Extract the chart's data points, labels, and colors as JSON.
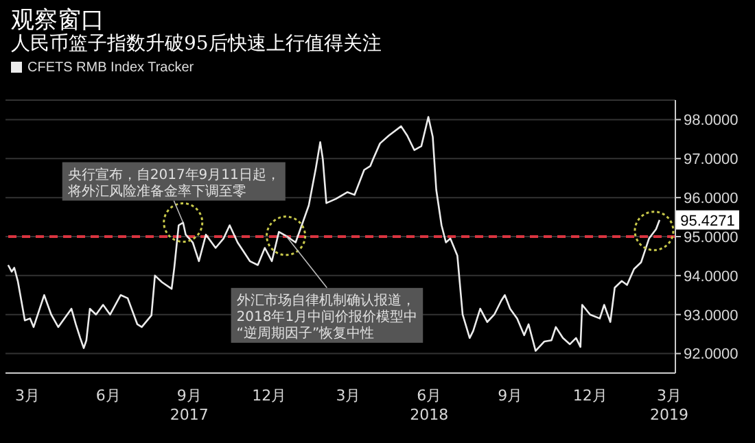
{
  "chart_data": {
    "type": "line",
    "title": "观察窗口",
    "subtitle": "人民币篮子指数升破95后快速上行值得关注",
    "legend": "top left",
    "grid": "y",
    "marker": "none",
    "line_style": "solid",
    "xlim": [
      "2017-02-18",
      "2019-03-22"
    ],
    "xticks": [
      {
        "value": "2017-03-15",
        "label": "3月"
      },
      {
        "value": "2017-06-15",
        "label": "6月"
      },
      {
        "value": "2017-09-15",
        "label": "9月\n2017"
      },
      {
        "value": "2017-12-15",
        "label": "12月"
      },
      {
        "value": "2018-03-15",
        "label": "3月"
      },
      {
        "value": "2018-06-15",
        "label": "6月\n2018"
      },
      {
        "value": "2018-09-15",
        "label": "9月"
      },
      {
        "value": "2018-12-15",
        "label": "12月"
      },
      {
        "value": "2019-03-15",
        "label": "3月\n2019"
      }
    ],
    "ylim": [
      91.5,
      98.5
    ],
    "yticks": [
      {
        "value": 92,
        "label": "92.0000"
      },
      {
        "value": 93,
        "label": "93.0000"
      },
      {
        "value": 94,
        "label": "94.0000"
      },
      {
        "value": 95,
        "label": "95.0000"
      },
      {
        "value": 96,
        "label": "96.0000"
      },
      {
        "value": 97,
        "label": "97.0000"
      },
      {
        "value": 98,
        "label": "98.0000"
      }
    ],
    "ref_lines": [
      {
        "axis": "y",
        "value": 95,
        "color": "#d9343f",
        "line_style": "dashed"
      }
    ],
    "annotations": [
      {
        "text": "央行宣布，自2017年9月11日起，将外汇风险准备金率下调至零",
        "x": "2017-09-08",
        "y": 95.36
      },
      {
        "text": "外汇市场自律机制确认报道，2018年1月中间价报价模型中“逆周期因子”恢复中性",
        "x": "2018-01-03",
        "y": 95.02
      }
    ],
    "x": [
      "2017-02-21",
      "2017-02-25",
      "2017-02-28",
      "2017-03-04",
      "2017-03-08",
      "2017-03-12",
      "2017-03-18",
      "2017-03-22",
      "2017-04-03",
      "2017-04-11",
      "2017-04-19",
      "2017-04-26",
      "2017-05-04",
      "2017-05-09",
      "2017-05-14",
      "2017-05-18",
      "2017-05-21",
      "2017-05-25",
      "2017-06-01",
      "2017-06-09",
      "2017-06-17",
      "2017-06-29",
      "2017-07-07",
      "2017-07-18",
      "2017-07-23",
      "2017-08-03",
      "2017-08-07",
      "2017-08-15",
      "2017-08-26",
      "2017-08-29",
      "2017-09-03",
      "2017-09-08",
      "2017-09-11",
      "2017-09-19",
      "2017-09-26",
      "2017-10-04",
      "2017-10-15",
      "2017-10-24",
      "2017-10-31",
      "2017-11-09",
      "2017-11-23",
      "2017-12-02",
      "2017-12-10",
      "2017-12-18",
      "2017-12-26",
      "2018-01-03",
      "2018-01-14",
      "2018-01-21",
      "2018-01-29",
      "2018-02-06",
      "2018-02-11",
      "2018-02-14",
      "2018-02-18",
      "2018-03-01",
      "2018-03-14",
      "2018-03-22",
      "2018-04-02",
      "2018-04-09",
      "2018-04-12",
      "2018-04-20",
      "2018-04-30",
      "2018-05-14",
      "2018-05-21",
      "2018-05-29",
      "2018-06-06",
      "2018-06-14",
      "2018-06-19",
      "2018-06-23",
      "2018-06-29",
      "2018-07-04",
      "2018-07-09",
      "2018-07-17",
      "2018-07-23",
      "2018-07-31",
      "2018-08-04",
      "2018-08-12",
      "2018-08-20",
      "2018-08-28",
      "2018-09-05",
      "2018-09-09",
      "2018-09-15",
      "2018-09-23",
      "2018-10-01",
      "2018-10-06",
      "2018-10-14",
      "2018-10-24",
      "2018-11-01",
      "2018-11-06",
      "2018-11-14",
      "2018-11-22",
      "2018-11-29",
      "2018-12-04",
      "2018-12-06",
      "2018-12-15",
      "2018-12-26",
      "2018-12-31",
      "2019-01-07",
      "2019-01-12",
      "2019-01-20",
      "2019-01-26",
      "2019-02-03",
      "2019-02-11",
      "2019-02-15",
      "2019-02-20",
      "2019-02-28",
      "2019-03-04"
    ],
    "series": [
      {
        "name": "CFETS RMB Index Tracker",
        "color": "#ececec",
        "values": [
          94.27,
          94.1,
          94.2,
          93.86,
          93.36,
          92.85,
          92.9,
          92.68,
          93.5,
          93.0,
          92.68,
          92.9,
          93.15,
          92.75,
          92.4,
          92.14,
          92.34,
          93.15,
          93.0,
          93.25,
          93.0,
          93.5,
          93.42,
          92.75,
          92.68,
          92.98,
          94.0,
          93.83,
          93.66,
          94.2,
          95.29,
          95.36,
          95.05,
          94.85,
          94.37,
          95.05,
          94.71,
          94.95,
          95.29,
          94.85,
          94.37,
          94.27,
          94.71,
          94.37,
          95.12,
          95.02,
          94.85,
          95.29,
          95.8,
          96.75,
          97.42,
          96.98,
          95.86,
          95.97,
          96.14,
          96.07,
          96.71,
          96.81,
          96.98,
          97.39,
          97.59,
          97.83,
          97.59,
          97.22,
          97.32,
          98.07,
          97.56,
          96.2,
          95.29,
          94.85,
          94.95,
          94.51,
          93.0,
          92.4,
          92.58,
          93.15,
          92.81,
          93.0,
          93.36,
          93.5,
          93.15,
          92.9,
          92.47,
          92.75,
          92.07,
          92.31,
          92.34,
          92.68,
          92.4,
          92.24,
          92.4,
          92.17,
          93.25,
          93.0,
          92.9,
          93.25,
          92.81,
          93.69,
          93.86,
          93.76,
          94.17,
          94.34,
          94.61,
          94.95,
          95.19,
          95.4271
        ],
        "value_labels": [
          null,
          null,
          null,
          null,
          null,
          null,
          null,
          null,
          null,
          null,
          null,
          null,
          null,
          null,
          null,
          null,
          null,
          null,
          null,
          null,
          null,
          null,
          null,
          null,
          null,
          null,
          null,
          null,
          null,
          null,
          null,
          null,
          null,
          null,
          null,
          null,
          null,
          null,
          null,
          null,
          null,
          null,
          null,
          null,
          null,
          null,
          null,
          null,
          null,
          null,
          null,
          null,
          null,
          null,
          null,
          null,
          null,
          null,
          null,
          null,
          null,
          null,
          null,
          null,
          null,
          null,
          null,
          null,
          null,
          null,
          null,
          null,
          null,
          null,
          null,
          null,
          null,
          null,
          null,
          null,
          null,
          null,
          null,
          null,
          null,
          null,
          null,
          null,
          null,
          null,
          null,
          null,
          null,
          null,
          null,
          null,
          null,
          null,
          null,
          null,
          null,
          null,
          null,
          null,
          null,
          "95.4271"
        ]
      }
    ]
  }
}
